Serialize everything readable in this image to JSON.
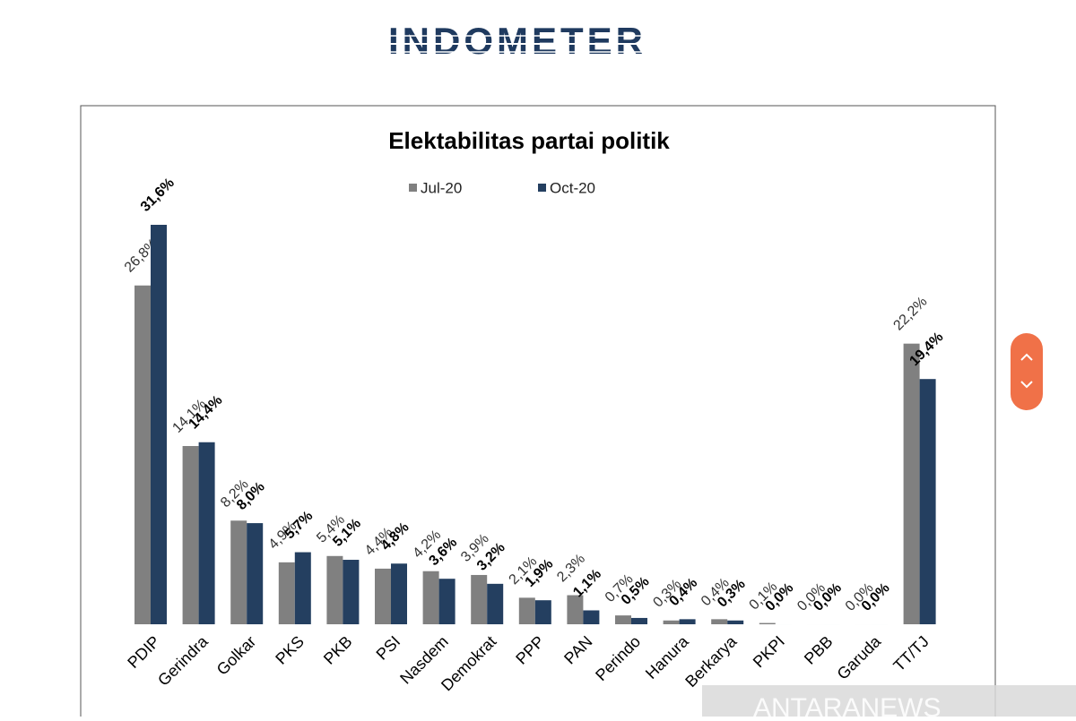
{
  "logo": "INDOMETER",
  "watermark": "ANTARANEWS",
  "chart_data": {
    "type": "bar",
    "title": "Elektabilitas partai politik",
    "categories": [
      "PDIP",
      "Gerindra",
      "Golkar",
      "PKS",
      "PKB",
      "PSI",
      "Nasdem",
      "Demokrat",
      "PPP",
      "PAN",
      "Perindo",
      "Hanura",
      "Berkarya",
      "PKPI",
      "PBB",
      "Garuda",
      "TT/TJ"
    ],
    "series": [
      {
        "name": "Jul-20",
        "color": "#808080",
        "values": [
          26.8,
          14.1,
          8.2,
          4.9,
          5.4,
          4.4,
          4.2,
          3.9,
          2.1,
          2.3,
          0.7,
          0.3,
          0.4,
          0.1,
          0.0,
          0.0,
          22.2
        ],
        "value_labels": [
          "26,8%",
          "14,1%",
          "8,2%",
          "4,9%",
          "5,4%",
          "4,4%",
          "4,2%",
          "3,9%",
          "2,1%",
          "2,3%",
          "0,7%",
          "0,3%",
          "0,4%",
          "0,1%",
          "0,0%",
          "0,0%",
          "22,2%"
        ]
      },
      {
        "name": "Oct-20",
        "color": "#243f60",
        "values": [
          31.6,
          14.4,
          8.0,
          5.7,
          5.1,
          4.8,
          3.6,
          3.2,
          1.9,
          1.1,
          0.5,
          0.4,
          0.3,
          0.0,
          0.0,
          0.0,
          19.4
        ],
        "value_labels": [
          "31,6%",
          "14,4%",
          "8,0%",
          "5,7%",
          "5,1%",
          "4,8%",
          "3,6%",
          "3,2%",
          "1,9%",
          "1,1%",
          "0,5%",
          "0,4%",
          "0,3%",
          "0,0%",
          "0,0%",
          "0,0%",
          "19,4%"
        ]
      }
    ],
    "legend": "top"
  }
}
